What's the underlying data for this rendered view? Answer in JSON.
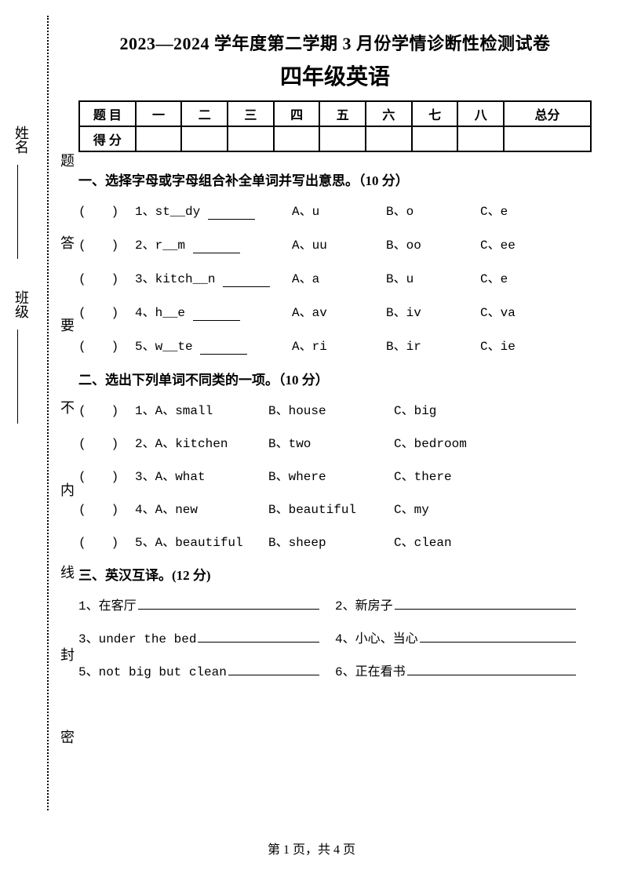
{
  "header": {
    "line1": "2023—2024 学年度第二学期 3 月份学情诊断性检测试卷",
    "line2": "四年级英语"
  },
  "margin_labels": {
    "outer": [
      "姓名",
      "班级"
    ],
    "inner": [
      "题",
      "答",
      "要",
      "不",
      "内",
      "线",
      "封",
      "密"
    ]
  },
  "score_table": {
    "row1": [
      "题 目",
      "一",
      "二",
      "三",
      "四",
      "五",
      "六",
      "七",
      "八",
      "总分"
    ],
    "row2_label": "得 分"
  },
  "section1": {
    "title": "一、选择字母或字母组合补全单词并写出意思。（10 分）",
    "items": [
      {
        "n": "1、",
        "word": "st__dy",
        "a": "A、u",
        "b": "B、o",
        "c": "C、e"
      },
      {
        "n": "2、",
        "word": "r__m",
        "a": "A、uu",
        "b": "B、oo",
        "c": "C、ee"
      },
      {
        "n": "3、",
        "word": "kitch__n",
        "a": "A、a",
        "b": "B、u",
        "c": "C、e"
      },
      {
        "n": "4、",
        "word": "h__e",
        "a": "A、av",
        "b": "B、iv",
        "c": "C、va"
      },
      {
        "n": "5、",
        "word": "w__te",
        "a": "A、ri",
        "b": "B、ir",
        "c": "C、ie"
      }
    ]
  },
  "section2": {
    "title": "二、选出下列单词不同类的一项。（10 分）",
    "items": [
      {
        "n": "1、",
        "a": "A、small",
        "b": "B、house",
        "c": "C、big"
      },
      {
        "n": "2、",
        "a": "A、kitchen",
        "b": "B、two",
        "c": "C、bedroom"
      },
      {
        "n": "3、",
        "a": "A、what",
        "b": "B、where",
        "c": "C、there"
      },
      {
        "n": "4、",
        "a": "A、new",
        "b": "B、beautiful",
        "c": "C、my"
      },
      {
        "n": "5、",
        "a": "A、beautiful",
        "b": "B、sheep",
        "c": "C、clean"
      }
    ]
  },
  "section3": {
    "title": "三、英汉互译。(12 分)",
    "pairs": [
      {
        "l_n": "1、",
        "l": "在客厅",
        "r_n": "2、",
        "r": "新房子"
      },
      {
        "l_n": "3、",
        "l": "under the bed",
        "r_n": "4、",
        "r": "小心、当心"
      },
      {
        "l_n": "5、",
        "l": "not big but clean",
        "r_n": "6、",
        "r": "正在看书"
      }
    ]
  },
  "footer": "第 1 页，共 4 页",
  "paren_template": "(　　) "
}
